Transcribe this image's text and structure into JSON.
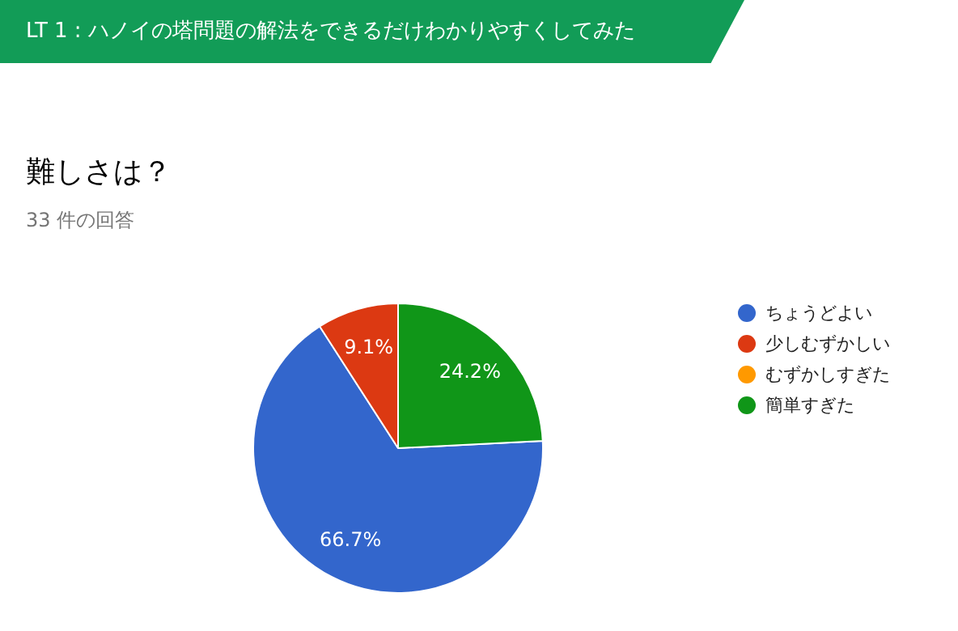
{
  "chart_data": {
    "type": "pie",
    "title": "難しさは？",
    "subtitle": "33 件の回答",
    "annotations": [
      "LT 1 : ハノイの塔問題の解法をできるだけわかりやすくしてみた"
    ],
    "categories": [
      "ちょうどよい",
      "少しむずかしい",
      "むずかしすぎた",
      "簡単すぎた"
    ],
    "values": [
      66.7,
      9.1,
      0,
      24.2
    ],
    "colors": [
      "#3366cc",
      "#dc3912",
      "#ff9900",
      "#109618"
    ],
    "value_labels": [
      "66.7%",
      "9.1%",
      null,
      "24.2%"
    ],
    "legend": "right"
  }
}
